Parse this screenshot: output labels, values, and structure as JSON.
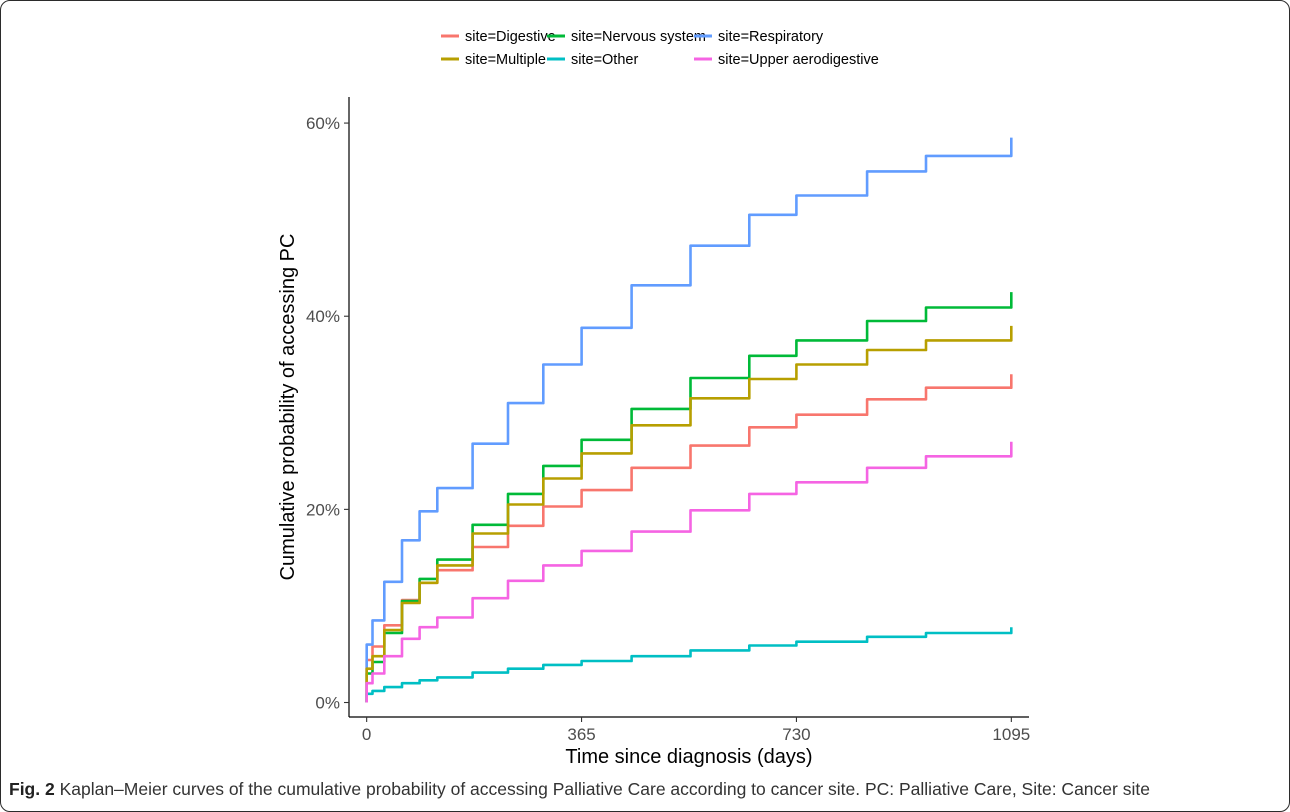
{
  "chart_data": {
    "type": "line",
    "xlabel": "Time since diagnosis (days)",
    "ylabel": "Cumulative probability of accessing PC",
    "xlim": [
      -30,
      1125
    ],
    "ylim": [
      -0.015,
      0.627
    ],
    "x_ticks": [
      0,
      365,
      730,
      1095
    ],
    "x_tick_labels": [
      "0",
      "365",
      "730",
      "1095"
    ],
    "y_ticks": [
      0,
      0.2,
      0.4,
      0.6
    ],
    "y_tick_labels": [
      "0%",
      "20%",
      "40%",
      "60%"
    ],
    "grid": false,
    "legend_position": "top",
    "series": [
      {
        "name": "site=Digestive",
        "color": "#F8766D",
        "x": [
          0,
          10,
          30,
          60,
          90,
          120,
          180,
          240,
          300,
          365,
          450,
          550,
          650,
          730,
          850,
          950,
          1095
        ],
        "y": [
          0.044,
          0.058,
          0.08,
          0.106,
          0.124,
          0.137,
          0.161,
          0.183,
          0.203,
          0.22,
          0.243,
          0.266,
          0.285,
          0.298,
          0.314,
          0.326,
          0.34
        ]
      },
      {
        "name": "site=Nervous system",
        "color": "#00BA38",
        "x": [
          0,
          10,
          30,
          60,
          90,
          120,
          180,
          240,
          300,
          365,
          450,
          550,
          650,
          730,
          850,
          950,
          1095
        ],
        "y": [
          0.03,
          0.042,
          0.072,
          0.105,
          0.128,
          0.148,
          0.184,
          0.216,
          0.245,
          0.272,
          0.304,
          0.336,
          0.359,
          0.375,
          0.395,
          0.409,
          0.425
        ]
      },
      {
        "name": "site=Respiratory",
        "color": "#619CFF",
        "x": [
          0,
          10,
          30,
          60,
          90,
          120,
          180,
          240,
          300,
          365,
          450,
          550,
          650,
          730,
          850,
          950,
          1095
        ],
        "y": [
          0.06,
          0.085,
          0.125,
          0.168,
          0.198,
          0.222,
          0.268,
          0.31,
          0.35,
          0.388,
          0.432,
          0.473,
          0.505,
          0.525,
          0.55,
          0.566,
          0.585
        ]
      },
      {
        "name": "site=Multiple",
        "color": "#B79F00",
        "x": [
          0,
          10,
          30,
          60,
          90,
          120,
          180,
          240,
          300,
          365,
          450,
          550,
          650,
          730,
          850,
          950,
          1095
        ],
        "y": [
          0.035,
          0.048,
          0.075,
          0.103,
          0.124,
          0.142,
          0.175,
          0.205,
          0.232,
          0.258,
          0.287,
          0.315,
          0.335,
          0.35,
          0.365,
          0.375,
          0.39
        ]
      },
      {
        "name": "site=Other",
        "color": "#00BFC4",
        "x": [
          0,
          10,
          30,
          60,
          90,
          120,
          180,
          240,
          300,
          365,
          450,
          550,
          650,
          730,
          850,
          950,
          1095
        ],
        "y": [
          0.009,
          0.012,
          0.016,
          0.02,
          0.023,
          0.026,
          0.031,
          0.035,
          0.039,
          0.043,
          0.048,
          0.054,
          0.059,
          0.063,
          0.068,
          0.072,
          0.078
        ]
      },
      {
        "name": "site=Upper aerodigestive",
        "color": "#F564E3",
        "x": [
          0,
          10,
          30,
          60,
          90,
          120,
          180,
          240,
          300,
          365,
          450,
          550,
          650,
          730,
          850,
          950,
          1095
        ],
        "y": [
          0.02,
          0.03,
          0.048,
          0.066,
          0.078,
          0.088,
          0.108,
          0.126,
          0.142,
          0.157,
          0.177,
          0.199,
          0.216,
          0.228,
          0.243,
          0.255,
          0.27
        ]
      }
    ]
  },
  "legend": {
    "rows": [
      [
        "site=Digestive",
        "site=Nervous system",
        "site=Respiratory"
      ],
      [
        "site=Multiple",
        "site=Other",
        "site=Upper aerodigestive"
      ]
    ]
  },
  "caption": {
    "label": "Fig. 2",
    "text": " Kaplan–Meier curves of the cumulative probability of accessing Palliative Care according to cancer site. PC: Palliative Care, Site: Cancer site"
  }
}
